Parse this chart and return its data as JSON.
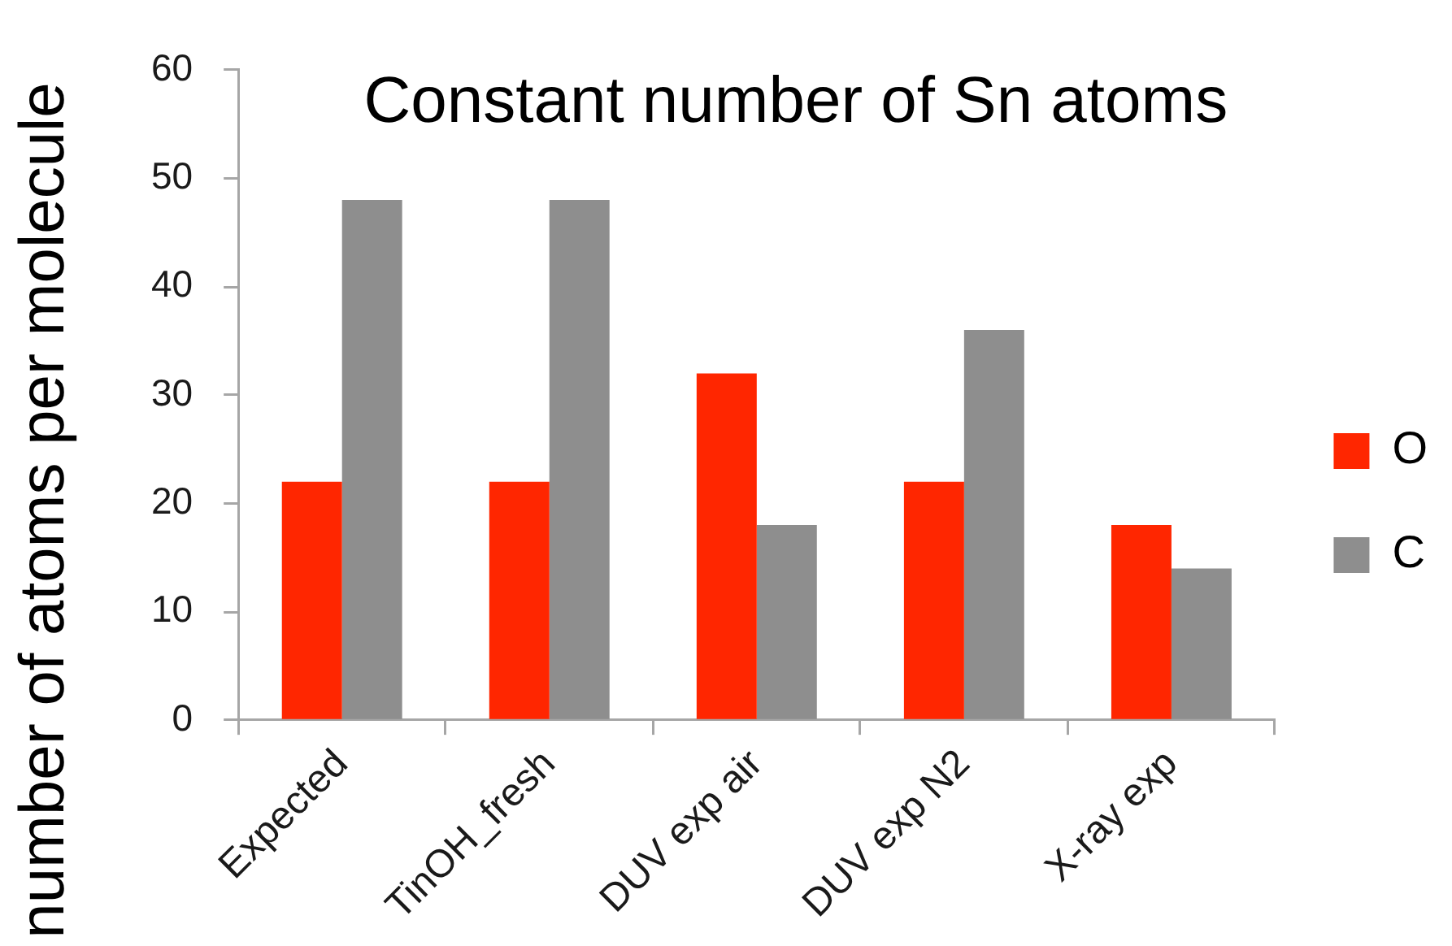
{
  "chart_data": {
    "type": "bar",
    "title": "Constant number of Sn atoms",
    "ylabel": "number of atoms per molecule",
    "categories": [
      "Expected",
      "TinOH_fresh",
      "DUV exp air",
      "DUV exp N2",
      "X-ray exp"
    ],
    "series": [
      {
        "name": "O",
        "color": "#ff2600",
        "values": [
          22,
          22,
          32,
          22,
          18
        ]
      },
      {
        "name": "C",
        "color": "#8e8e8e",
        "values": [
          48,
          48,
          18,
          36,
          14
        ]
      }
    ],
    "ylim": [
      0,
      60
    ],
    "yticks": [
      0,
      10,
      20,
      30,
      40,
      50,
      60
    ],
    "grid": false,
    "legend": "right"
  }
}
